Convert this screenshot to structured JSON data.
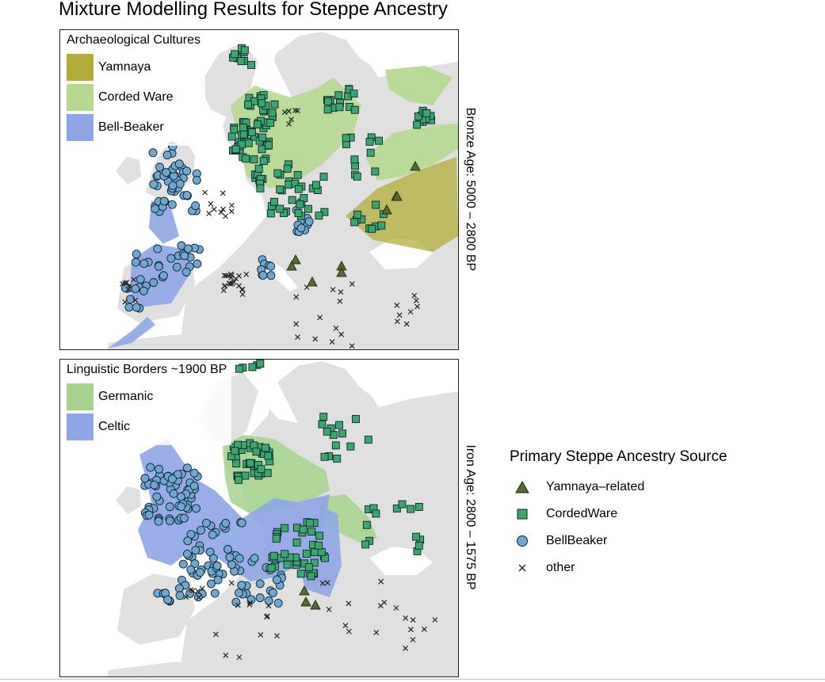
{
  "chart_data": {
    "type": "scatter",
    "title": "Mixture Modelling Results for Steppe Ancestry",
    "legend": {
      "title": "Primary Steppe Ancestry Source",
      "position": "right",
      "entries": [
        {
          "label": "Yamnaya–related",
          "shape": "triangle",
          "color": "#556b2f"
        },
        {
          "label": "CordedWare",
          "shape": "square",
          "color": "#3aa86b"
        },
        {
          "label": "BellBeaker",
          "shape": "circle",
          "color": "#6ea7cf"
        },
        {
          "label": "other",
          "shape": "cross",
          "color": "#222222"
        }
      ]
    },
    "panels": [
      {
        "strip_label": "Bronze Age: 5000 – 2800 BP",
        "inset_title": "Archaeological Cultures",
        "regions": [
          {
            "label": "Yamnaya",
            "color": "#b3ac3a"
          },
          {
            "label": "Corded Ware",
            "color": "#b6d98f"
          },
          {
            "label": "Bell-Beaker",
            "color": "#8fa6e6"
          }
        ]
      },
      {
        "strip_label": "Iron Age: 2800 – 1575 BP",
        "inset_title": "Linguistic Borders ~1900 BP",
        "regions": [
          {
            "label": "Germanic",
            "color": "#a6d38c"
          },
          {
            "label": "Celtic",
            "color": "#8fa6e6"
          }
        ]
      }
    ]
  }
}
